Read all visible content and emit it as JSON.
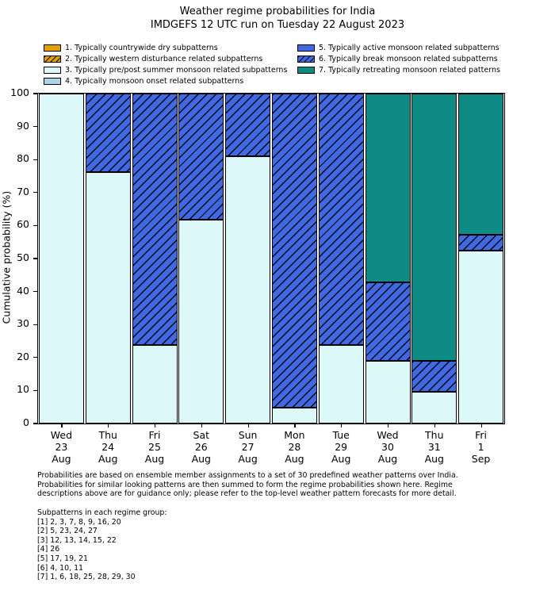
{
  "title": "Weather regime probabilities for India",
  "subtitle": "IMDGEFS 12 UTC run on Tuesday 22 August 2023",
  "legend": {
    "items": [
      {
        "label": "1. Typically countrywide dry subpatterns",
        "color": "#e69f00",
        "hatch": false,
        "column": 1
      },
      {
        "label": "2. Typically western disturbance related subpatterns",
        "color": "#e69f00",
        "hatch": true,
        "column": 1
      },
      {
        "label": "3. Typically pre/post summer monsoon related subpatterns",
        "color": "#dcf8f8",
        "hatch": false,
        "column": 1
      },
      {
        "label": "4. Typically monsoon onset related subpatterns",
        "color": "#aed6e8",
        "hatch": false,
        "column": 1
      },
      {
        "label": "5. Typically active monsoon related subpatterns",
        "color": "#4169e1",
        "hatch": false,
        "column": 2
      },
      {
        "label": "6. Typically break monsoon related subpatterns",
        "color": "#4169e1",
        "hatch": true,
        "column": 2
      },
      {
        "label": "7. Typically retreating monsoon related patterns",
        "color": "#0e8b84",
        "hatch": false,
        "column": 2
      }
    ]
  },
  "chart_data": {
    "type": "bar",
    "stacked": true,
    "title": "Weather regime probabilities for India",
    "subtitle": "IMDGEFS 12 UTC run on Tuesday 22 August 2023",
    "xlabel": "",
    "ylabel": "Cumulative probability (%)",
    "ylim": [
      0,
      100
    ],
    "yticks": [
      0,
      10,
      20,
      30,
      40,
      50,
      60,
      70,
      80,
      90,
      100
    ],
    "grid": false,
    "legend_position": "upper-left-two-columns",
    "bar_outline_color": "#000000",
    "categories": [
      [
        "Wed",
        "23",
        "Aug"
      ],
      [
        "Thu",
        "24",
        "Aug"
      ],
      [
        "Fri",
        "25",
        "Aug"
      ],
      [
        "Sat",
        "26",
        "Aug"
      ],
      [
        "Sun",
        "27",
        "Aug"
      ],
      [
        "Mon",
        "28",
        "Aug"
      ],
      [
        "Tue",
        "29",
        "Aug"
      ],
      [
        "Wed",
        "30",
        "Aug"
      ],
      [
        "Thu",
        "31",
        "Aug"
      ],
      [
        "Fri",
        "1",
        "Sep"
      ]
    ],
    "series": [
      {
        "name": "3. Typically pre/post summer monsoon related subpatterns",
        "color": "#dcf8f8",
        "hatch": false,
        "values": [
          100,
          76.2,
          23.8,
          61.9,
          81.0,
          4.8,
          23.8,
          19.0,
          9.5,
          52.4
        ]
      },
      {
        "name": "6. Typically break monsoon related subpatterns",
        "color": "#4169e1",
        "hatch": true,
        "values": [
          0,
          23.8,
          76.2,
          38.1,
          19.0,
          95.2,
          76.2,
          23.9,
          9.5,
          4.8
        ]
      },
      {
        "name": "7. Typically retreating monsoon related patterns",
        "color": "#0e8b84",
        "hatch": false,
        "values": [
          0,
          0,
          0,
          0,
          0,
          0,
          0,
          57.1,
          81.0,
          42.8
        ]
      }
    ]
  },
  "footnote": {
    "lines": [
      "Probabilities are based on ensemble member assignments to a set of 30 predefined weather patterns over India.",
      "Probabilities for similar looking patterns are then summed to form the regime probabilities shown here. Regime",
      "descriptions above are for guidance only; please refer to the top-level weather pattern forecasts for more detail."
    ]
  },
  "subpatterns": {
    "heading": "Subpatterns in each regime group:",
    "groups": [
      "[1] 2, 3, 7, 8, 9, 16, 20",
      "[2] 5, 23, 24, 27",
      "[3] 12, 13, 14, 15, 22",
      "[4] 26",
      "[5] 17, 19, 21",
      "[6] 4, 10, 11",
      "[7] 1, 6, 18, 25, 28, 29, 30"
    ]
  }
}
